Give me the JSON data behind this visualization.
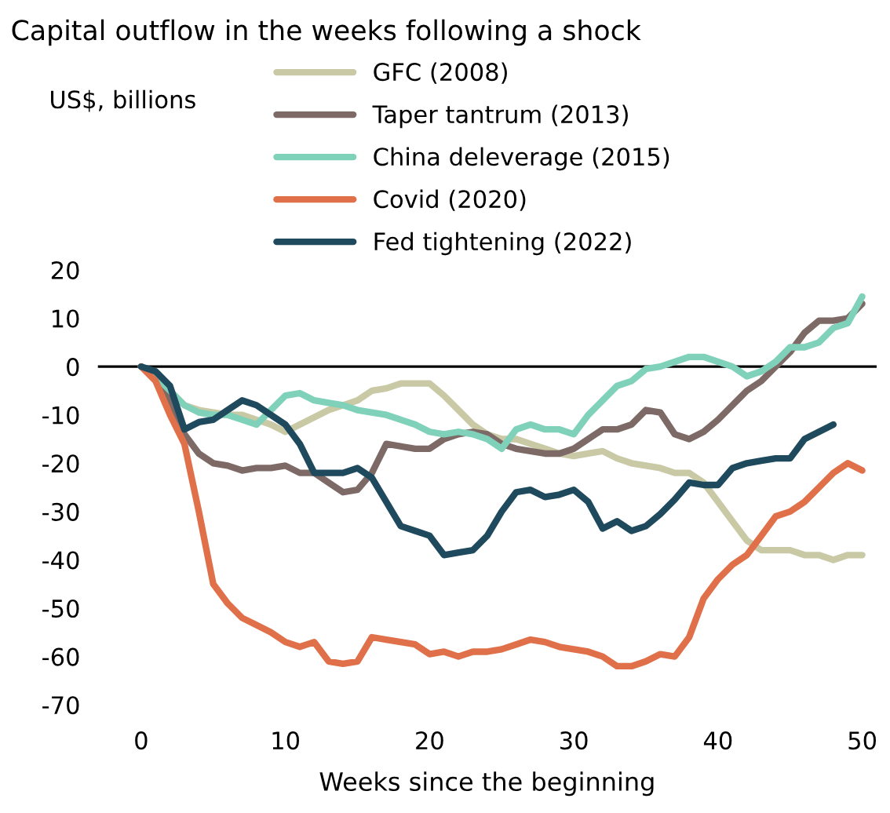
{
  "chart_data": {
    "type": "line",
    "title": "Capital outflow in the weeks following a shock",
    "annotations": [
      "US$, billions"
    ],
    "xlabel": "Weeks since the beginning",
    "x": [
      0,
      1,
      2,
      3,
      4,
      5,
      6,
      7,
      8,
      9,
      10,
      11,
      12,
      13,
      14,
      15,
      16,
      17,
      18,
      19,
      20,
      21,
      22,
      23,
      24,
      25,
      26,
      27,
      28,
      29,
      30,
      31,
      32,
      33,
      34,
      35,
      36,
      37,
      38,
      39,
      40,
      41,
      42,
      43,
      44,
      45,
      46,
      47,
      48,
      49,
      50
    ],
    "xlim": [
      -3,
      51
    ],
    "xticks": [
      0,
      10,
      20,
      30,
      40,
      50
    ],
    "ylim": [
      -70,
      20
    ],
    "yticks": [
      -70,
      -60,
      -50,
      -40,
      -30,
      -20,
      -10,
      0,
      10,
      20
    ],
    "grid": false,
    "legend": "top",
    "line_style": "solid",
    "marker": "none",
    "ref_lines": [
      {
        "axis": "y",
        "value": 0,
        "color": "#000000"
      }
    ],
    "series": [
      {
        "name": "GFC (2008)",
        "color": "#c9c9a6",
        "values": [
          0,
          -2,
          -5,
          -8,
          -9,
          -9.5,
          -10,
          -10,
          -11,
          -12,
          -13.5,
          -12,
          -10.5,
          -9,
          -8,
          -7,
          -5,
          -4.5,
          -3.5,
          -3.5,
          -3.5,
          -6,
          -9,
          -12,
          -14,
          -15,
          -15,
          -16,
          -17,
          -18,
          -18.5,
          -18,
          -17.5,
          -19,
          -20,
          -20.5,
          -21,
          -22,
          -22,
          -24,
          -28,
          -32,
          -36,
          -38,
          -38,
          -38,
          -39,
          -39,
          -40,
          -39,
          -39
        ]
      },
      {
        "name": "Taper tantrum (2013)",
        "color": "#7d6a66",
        "values": [
          0,
          -2,
          -7,
          -14,
          -18,
          -20,
          -20.5,
          -21.5,
          -21,
          -21,
          -20.5,
          -22,
          -22,
          -24,
          -26,
          -25.5,
          -22,
          -16,
          -16.5,
          -17,
          -17,
          -15,
          -14,
          -13.5,
          -14,
          -16,
          -17,
          -17.5,
          -18,
          -18,
          -17,
          -15,
          -13,
          -13,
          -12,
          -9,
          -9.5,
          -14,
          -15,
          -13.5,
          -11,
          -8,
          -5,
          -3,
          0,
          3,
          7,
          9.5,
          9.5,
          10,
          13
        ]
      },
      {
        "name": "China deleverage (2015)",
        "color": "#7fd1b9",
        "values": [
          0,
          -2,
          -5,
          -8,
          -9.5,
          -10,
          -10,
          -11,
          -12,
          -9,
          -6,
          -5.5,
          -7,
          -7.5,
          -8,
          -9,
          -9.5,
          -10,
          -11,
          -12,
          -13.5,
          -14,
          -13.5,
          -14,
          -15,
          -17,
          -13,
          -12,
          -13,
          -13,
          -14,
          -10,
          -7,
          -4,
          -3,
          -0.5,
          0,
          1,
          2,
          2,
          1,
          0,
          -2,
          -1,
          1,
          4,
          4,
          5,
          8,
          9,
          14.5
        ]
      },
      {
        "name": "Covid (2020)",
        "color": "#e07049",
        "values": [
          0,
          -3,
          -10,
          -16,
          -30,
          -45,
          -49,
          -52,
          -53.5,
          -55,
          -57,
          -58,
          -57,
          -61,
          -61.5,
          -61,
          -56,
          -56.5,
          -57,
          -57.5,
          -59.5,
          -59,
          -60,
          -59,
          -59,
          -58.5,
          -57.5,
          -56.5,
          -57,
          -58,
          -58.5,
          -59,
          -60,
          -62,
          -62,
          -61,
          -59.5,
          -60,
          -56,
          -48,
          -44,
          -41,
          -39,
          -35,
          -31,
          -30,
          -28,
          -25,
          -22,
          -20,
          -21.5
        ]
      },
      {
        "name": "Fed tightening (2022)",
        "color": "#1f4a5e",
        "values": [
          0,
          -1,
          -4,
          -13,
          -11.5,
          -11,
          -9,
          -7,
          -8,
          -10,
          -12,
          -16,
          -22,
          -22,
          -22,
          -21,
          -23,
          -28,
          -33,
          -34,
          -35,
          -39,
          -38.5,
          -38,
          -35,
          -30,
          -26,
          -25.5,
          -27,
          -26.5,
          -25.5,
          -28,
          -33.5,
          -32,
          -34,
          -33,
          -30.5,
          -27.5,
          -24,
          -24.5,
          -24.5,
          -21,
          -20,
          -19.5,
          -19,
          -19,
          -15,
          -13.5,
          -12,
          null,
          null
        ]
      }
    ]
  }
}
